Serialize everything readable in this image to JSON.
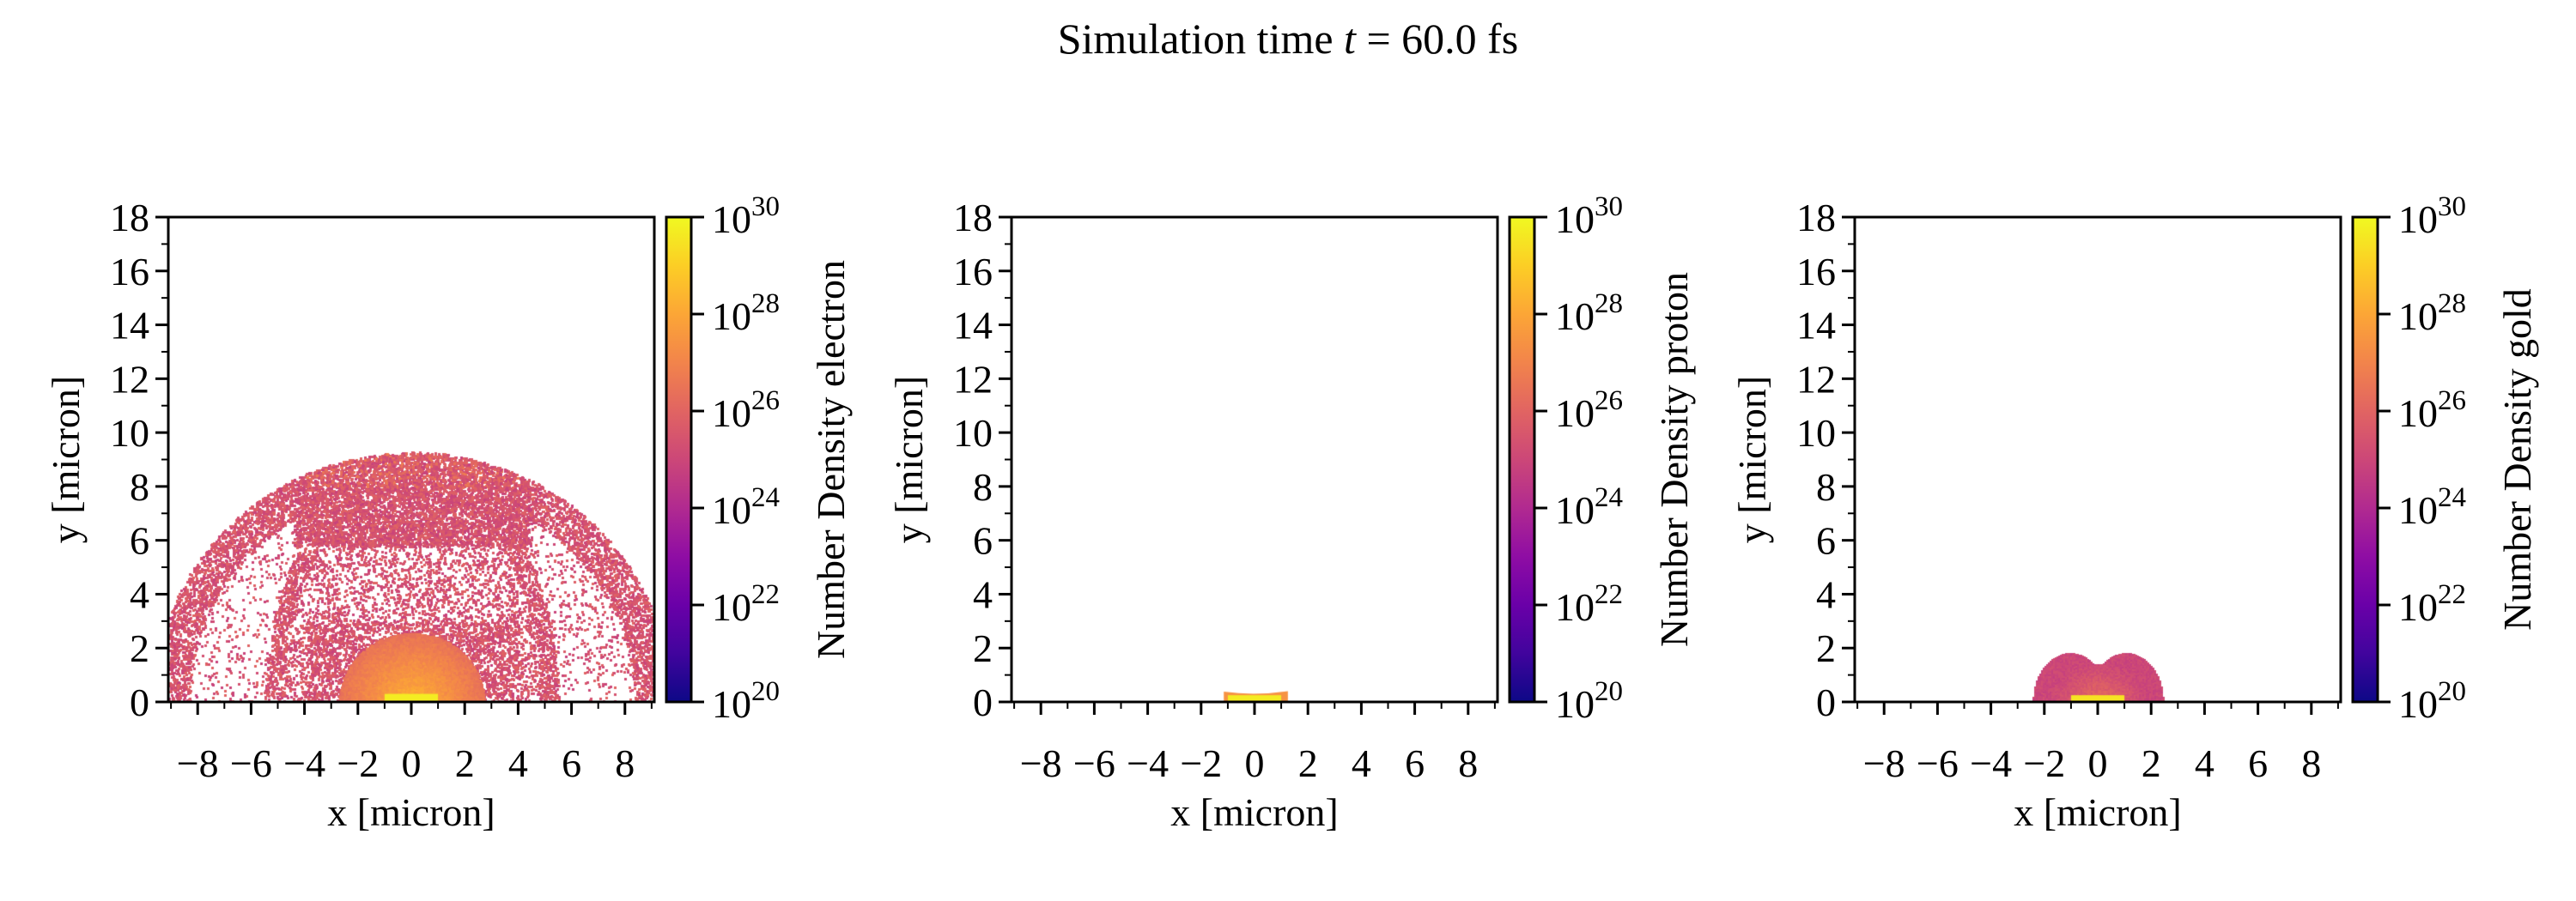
{
  "figure": {
    "title_prefix": "Simulation time ",
    "title_var": "t",
    "title_suffix": " = 60.0 fs"
  },
  "colormap": {
    "name": "plasma",
    "stops": [
      "#0d0887",
      "#41049d",
      "#6a00a8",
      "#8f0da4",
      "#b12a90",
      "#cc4778",
      "#e16462",
      "#f2844b",
      "#fca636",
      "#fcce25",
      "#f0f921"
    ]
  },
  "chart_data": [
    {
      "type": "heatmap",
      "species": "electron",
      "xlabel": "x [micron]",
      "ylabel": "y [micron]",
      "colorbar_label": "Number Density electron",
      "xlim": [
        -9.1,
        9.1
      ],
      "ylim": [
        0,
        18
      ],
      "xticks": [
        "−8",
        "−6",
        "−4",
        "−2",
        "0",
        "2",
        "4",
        "6",
        "8"
      ],
      "xtick_values": [
        -8,
        -6,
        -4,
        -2,
        0,
        2,
        4,
        6,
        8
      ],
      "yticks": [
        "0",
        "2",
        "4",
        "6",
        "8",
        "10",
        "12",
        "14",
        "16",
        "18"
      ],
      "ytick_values": [
        0,
        2,
        4,
        6,
        8,
        10,
        12,
        14,
        16,
        18
      ],
      "colorbar_scale": "log",
      "clim": [
        1e+20,
        1e+30
      ],
      "colorbar_ticks": [
        {
          "base": "10",
          "exp": "20"
        },
        {
          "base": "10",
          "exp": "22"
        },
        {
          "base": "10",
          "exp": "24"
        },
        {
          "base": "10",
          "exp": "26"
        },
        {
          "base": "10",
          "exp": "28"
        },
        {
          "base": "10",
          "exp": "30"
        }
      ],
      "colorbar_tick_exponents": [
        20,
        22,
        24,
        26,
        28,
        30
      ],
      "features": {
        "cloud_extent_x": [
          -9.1,
          9.1
        ],
        "cloud_max_y": 9.6,
        "dense_core_radius": 2.6,
        "target_x": [
          -1,
          1
        ],
        "target_y": [
          0,
          0.3
        ]
      }
    },
    {
      "type": "heatmap",
      "species": "proton",
      "xlabel": "x [micron]",
      "ylabel": "y [micron]",
      "colorbar_label": "Number Density proton",
      "xlim": [
        -9.1,
        9.1
      ],
      "ylim": [
        0,
        18
      ],
      "xticks": [
        "−8",
        "−6",
        "−4",
        "−2",
        "0",
        "2",
        "4",
        "6",
        "8"
      ],
      "xtick_values": [
        -8,
        -6,
        -4,
        -2,
        0,
        2,
        4,
        6,
        8
      ],
      "yticks": [
        "0",
        "2",
        "4",
        "6",
        "8",
        "10",
        "12",
        "14",
        "16",
        "18"
      ],
      "ytick_values": [
        0,
        2,
        4,
        6,
        8,
        10,
        12,
        14,
        16,
        18
      ],
      "colorbar_scale": "log",
      "clim": [
        1e+20,
        1e+30
      ],
      "colorbar_ticks": [
        {
          "base": "10",
          "exp": "20"
        },
        {
          "base": "10",
          "exp": "22"
        },
        {
          "base": "10",
          "exp": "24"
        },
        {
          "base": "10",
          "exp": "26"
        },
        {
          "base": "10",
          "exp": "28"
        },
        {
          "base": "10",
          "exp": "30"
        }
      ],
      "colorbar_tick_exponents": [
        20,
        22,
        24,
        26,
        28,
        30
      ],
      "features": {
        "layer_x": [
          -1.1,
          1.2
        ],
        "layer_max_y": 0.4,
        "target_x": [
          -1,
          1
        ],
        "target_y": [
          0,
          0.25
        ]
      }
    },
    {
      "type": "heatmap",
      "species": "gold",
      "xlabel": "x [micron]",
      "ylabel": "y [micron]",
      "colorbar_label": "Number Density gold",
      "xlim": [
        -9.1,
        9.1
      ],
      "ylim": [
        0,
        18
      ],
      "xticks": [
        "−8",
        "−6",
        "−4",
        "−2",
        "0",
        "2",
        "4",
        "6",
        "8"
      ],
      "xtick_values": [
        -8,
        -6,
        -4,
        -2,
        0,
        2,
        4,
        6,
        8
      ],
      "yticks": [
        "0",
        "2",
        "4",
        "6",
        "8",
        "10",
        "12",
        "14",
        "16",
        "18"
      ],
      "ytick_values": [
        0,
        2,
        4,
        6,
        8,
        10,
        12,
        14,
        16,
        18
      ],
      "colorbar_scale": "log",
      "clim": [
        1e+20,
        1e+30
      ],
      "colorbar_ticks": [
        {
          "base": "10",
          "exp": "20"
        },
        {
          "base": "10",
          "exp": "22"
        },
        {
          "base": "10",
          "exp": "24"
        },
        {
          "base": "10",
          "exp": "26"
        },
        {
          "base": "10",
          "exp": "28"
        },
        {
          "base": "10",
          "exp": "30"
        }
      ],
      "colorbar_tick_exponents": [
        20,
        22,
        24,
        26,
        28,
        30
      ],
      "features": {
        "blob_x": [
          -2.4,
          2.4
        ],
        "blob_max_y": 1.8,
        "notch_y": 1.4,
        "target_x": [
          -1,
          1
        ],
        "target_y": [
          0,
          0.25
        ]
      }
    }
  ]
}
